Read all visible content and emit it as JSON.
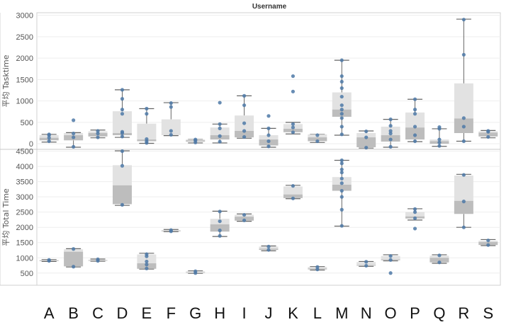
{
  "chart_data": {
    "type": "box",
    "title": "Username",
    "categories": [
      "A",
      "B",
      "C",
      "D",
      "E",
      "F",
      "G",
      "H",
      "I",
      "J",
      "K",
      "L",
      "M",
      "N",
      "O",
      "P",
      "Q",
      "R",
      "S"
    ],
    "panels": [
      {
        "ylabel": "平均 Tasktime",
        "yticks": [
          0,
          500,
          1000,
          1500,
          2000,
          2500,
          3000
        ],
        "ylim": [
          -130,
          3060
        ],
        "boxes": [
          {
            "category": "A",
            "min": 40,
            "q1": 80,
            "median": 140,
            "q3": 200,
            "max": 220,
            "points": [
              60,
              140,
              200,
              220
            ]
          },
          {
            "category": "B",
            "min": -80,
            "q1": 80,
            "median": 200,
            "q3": 250,
            "max": 260,
            "points": [
              -70,
              150,
              240,
              550
            ]
          },
          {
            "category": "C",
            "min": 140,
            "q1": 170,
            "median": 250,
            "q3": 290,
            "max": 320,
            "points": [
              150,
              240,
              300
            ]
          },
          {
            "category": "D",
            "min": 150,
            "q1": 200,
            "median": 250,
            "q3": 760,
            "max": 1260,
            "points": [
              170,
              250,
              280,
              700,
              800,
              1050,
              1260
            ]
          },
          {
            "category": "E",
            "min": 10,
            "q1": 60,
            "median": 100,
            "q3": 470,
            "max": 820,
            "points": [
              20,
              60,
              110,
              700,
              820
            ]
          },
          {
            "category": "F",
            "min": 190,
            "q1": 210,
            "median": 220,
            "q3": 570,
            "max": 960,
            "points": [
              210,
              300,
              860,
              950
            ]
          },
          {
            "category": "G",
            "min": 20,
            "q1": 50,
            "median": 80,
            "q3": 100,
            "max": 100,
            "points": [
              30,
              80,
              100
            ]
          },
          {
            "category": "H",
            "min": 20,
            "q1": 100,
            "median": 200,
            "q3": 380,
            "max": 460,
            "points": [
              50,
              180,
              360,
              460,
              960
            ]
          },
          {
            "category": "I",
            "min": 130,
            "q1": 150,
            "median": 300,
            "q3": 660,
            "max": 1120,
            "points": [
              160,
              300,
              480,
              900,
              1120
            ]
          },
          {
            "category": "J",
            "min": -80,
            "q1": -40,
            "median": 100,
            "q3": 200,
            "max": 360,
            "points": [
              -60,
              60,
              200,
              360,
              650
            ]
          },
          {
            "category": "K",
            "min": 230,
            "q1": 270,
            "median": 350,
            "q3": 460,
            "max": 500,
            "points": [
              270,
              380,
              460,
              1220,
              1580
            ]
          },
          {
            "category": "L",
            "min": 30,
            "q1": 60,
            "median": 150,
            "q3": 220,
            "max": 220,
            "points": [
              60,
              200
            ]
          },
          {
            "category": "M",
            "min": 200,
            "q1": 630,
            "median": 800,
            "q3": 1200,
            "max": 1950,
            "points": [
              220,
              400,
              600,
              700,
              800,
              900,
              1100,
              1300,
              1450,
              1580,
              1950
            ]
          },
          {
            "category": "N",
            "min": -100,
            "q1": -80,
            "median": 150,
            "q3": 250,
            "max": 300,
            "points": [
              -90,
              150,
              290
            ]
          },
          {
            "category": "O",
            "min": -80,
            "q1": 50,
            "median": 200,
            "q3": 400,
            "max": 570,
            "points": [
              -70,
              100,
              240,
              300,
              420,
              570
            ]
          },
          {
            "category": "P",
            "min": 50,
            "q1": 100,
            "median": 380,
            "q3": 730,
            "max": 1040,
            "points": [
              60,
              200,
              400,
              700,
              800,
              1040
            ]
          },
          {
            "category": "Q",
            "min": -60,
            "q1": 0,
            "median": 60,
            "q3": 100,
            "max": 350,
            "points": [
              -50,
              30,
              100,
              350,
              390
            ]
          },
          {
            "category": "R",
            "min": 60,
            "q1": 250,
            "median": 590,
            "q3": 1410,
            "max": 2910,
            "points": [
              60,
              400,
              600,
              2080,
              2900
            ]
          },
          {
            "category": "S",
            "min": 140,
            "q1": 170,
            "median": 260,
            "q3": 290,
            "max": 310,
            "points": [
              160,
              280,
              300
            ]
          }
        ]
      },
      {
        "ylabel": "平均 Total Time",
        "yticks": [
          500,
          1000,
          1500,
          2000,
          2500,
          3000,
          3500,
          4000,
          4500
        ],
        "ylim": [
          100,
          4560
        ],
        "boxes": [
          {
            "category": "A",
            "min": 880,
            "q1": 890,
            "median": 910,
            "q3": 930,
            "max": 940,
            "points": [
              900,
              930
            ]
          },
          {
            "category": "B",
            "min": 700,
            "q1": 720,
            "median": 1200,
            "q3": 1280,
            "max": 1300,
            "points": [
              710,
              1290
            ]
          },
          {
            "category": "C",
            "min": 890,
            "q1": 900,
            "median": 910,
            "q3": 940,
            "max": 960,
            "points": [
              900,
              950
            ]
          },
          {
            "category": "D",
            "min": 2720,
            "q1": 2760,
            "median": 3380,
            "q3": 4040,
            "max": 4510,
            "points": [
              2740,
              4020,
              4500
            ]
          },
          {
            "category": "E",
            "min": 630,
            "q1": 640,
            "median": 820,
            "q3": 1110,
            "max": 1150,
            "points": [
              650,
              780,
              880,
              1050,
              1120
            ]
          },
          {
            "category": "F",
            "min": 1860,
            "q1": 1870,
            "median": 1890,
            "q3": 1910,
            "max": 1930,
            "points": [
              1870,
              1910
            ]
          },
          {
            "category": "G",
            "min": 490,
            "q1": 500,
            "median": 510,
            "q3": 560,
            "max": 570,
            "points": [
              500,
              560
            ]
          },
          {
            "category": "H",
            "min": 1700,
            "q1": 1860,
            "median": 2100,
            "q3": 2280,
            "max": 2530,
            "points": [
              1720,
              1900,
              2200,
              2520
            ]
          },
          {
            "category": "I",
            "min": 2200,
            "q1": 2220,
            "median": 2350,
            "q3": 2410,
            "max": 2440,
            "points": [
              2230,
              2410
            ]
          },
          {
            "category": "J",
            "min": 1230,
            "q1": 1260,
            "median": 1300,
            "q3": 1370,
            "max": 1390,
            "points": [
              1260,
              1370
            ]
          },
          {
            "category": "K",
            "min": 2940,
            "q1": 2960,
            "median": 3080,
            "q3": 3340,
            "max": 3380,
            "points": [
              2950,
              3360
            ]
          },
          {
            "category": "L",
            "min": 600,
            "q1": 620,
            "median": 650,
            "q3": 700,
            "max": 710,
            "points": [
              620,
              700
            ]
          },
          {
            "category": "M",
            "min": 2040,
            "q1": 3200,
            "median": 3400,
            "q3": 3650,
            "max": 4200,
            "points": [
              2050,
              2580,
              3000,
              3200,
              3450,
              3600,
              3800,
              3900,
              4100,
              4200
            ]
          },
          {
            "category": "N",
            "min": 720,
            "q1": 740,
            "median": 760,
            "q3": 860,
            "max": 880,
            "points": [
              740,
              870
            ]
          },
          {
            "category": "O",
            "min": 900,
            "q1": 920,
            "median": 950,
            "q3": 1060,
            "max": 1100,
            "points": [
              500,
              930,
              1060
            ]
          },
          {
            "category": "P",
            "min": 2240,
            "q1": 2290,
            "median": 2360,
            "q3": 2500,
            "max": 2610,
            "points": [
              1960,
              2300,
              2500,
              2600
            ]
          },
          {
            "category": "Q",
            "min": 820,
            "q1": 850,
            "median": 1000,
            "q3": 1070,
            "max": 1100,
            "points": [
              850,
              1080
            ]
          },
          {
            "category": "R",
            "min": 2000,
            "q1": 2440,
            "median": 2870,
            "q3": 3700,
            "max": 3740,
            "points": [
              2000,
              2850,
              3720
            ]
          },
          {
            "category": "S",
            "min": 1400,
            "q1": 1420,
            "median": 1520,
            "q3": 1560,
            "max": 1600,
            "points": [
              1420,
              1570
            ]
          }
        ]
      }
    ]
  }
}
